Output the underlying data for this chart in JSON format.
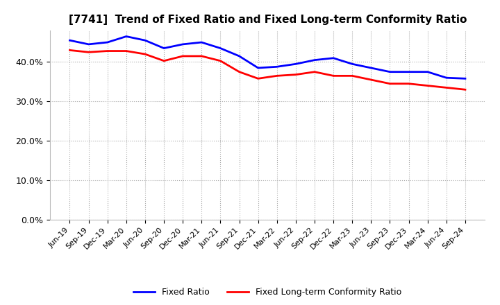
{
  "title": "[7741]  Trend of Fixed Ratio and Fixed Long-term Conformity Ratio",
  "x_labels": [
    "Jun-19",
    "Sep-19",
    "Dec-19",
    "Mar-20",
    "Jun-20",
    "Sep-20",
    "Dec-20",
    "Mar-21",
    "Jun-21",
    "Sep-21",
    "Dec-21",
    "Mar-22",
    "Jun-22",
    "Sep-22",
    "Dec-22",
    "Mar-23",
    "Jun-23",
    "Sep-23",
    "Dec-23",
    "Mar-24",
    "Jun-24",
    "Sep-24"
  ],
  "fixed_ratio": [
    45.5,
    44.5,
    45.0,
    46.5,
    45.5,
    43.5,
    44.5,
    45.0,
    43.5,
    41.5,
    38.5,
    38.8,
    39.5,
    40.5,
    41.0,
    39.5,
    38.5,
    37.5,
    37.5,
    37.5,
    36.0,
    35.8
  ],
  "fixed_lt_ratio": [
    43.0,
    42.5,
    42.8,
    42.8,
    42.0,
    40.3,
    41.5,
    41.5,
    40.3,
    37.5,
    35.8,
    36.5,
    36.8,
    37.5,
    36.5,
    36.5,
    35.5,
    34.5,
    34.5,
    34.0,
    33.5,
    33.0
  ],
  "fixed_ratio_color": "#0000FF",
  "fixed_lt_ratio_color": "#FF0000",
  "ylim": [
    0,
    48
  ],
  "yticks": [
    0,
    10,
    20,
    30,
    40
  ],
  "legend_fixed": "Fixed Ratio",
  "legend_lt": "Fixed Long-term Conformity Ratio",
  "bg_color": "#FFFFFF",
  "plot_bg_color": "#FFFFFF",
  "grid_color": "#AAAAAA",
  "line_width": 2.0
}
